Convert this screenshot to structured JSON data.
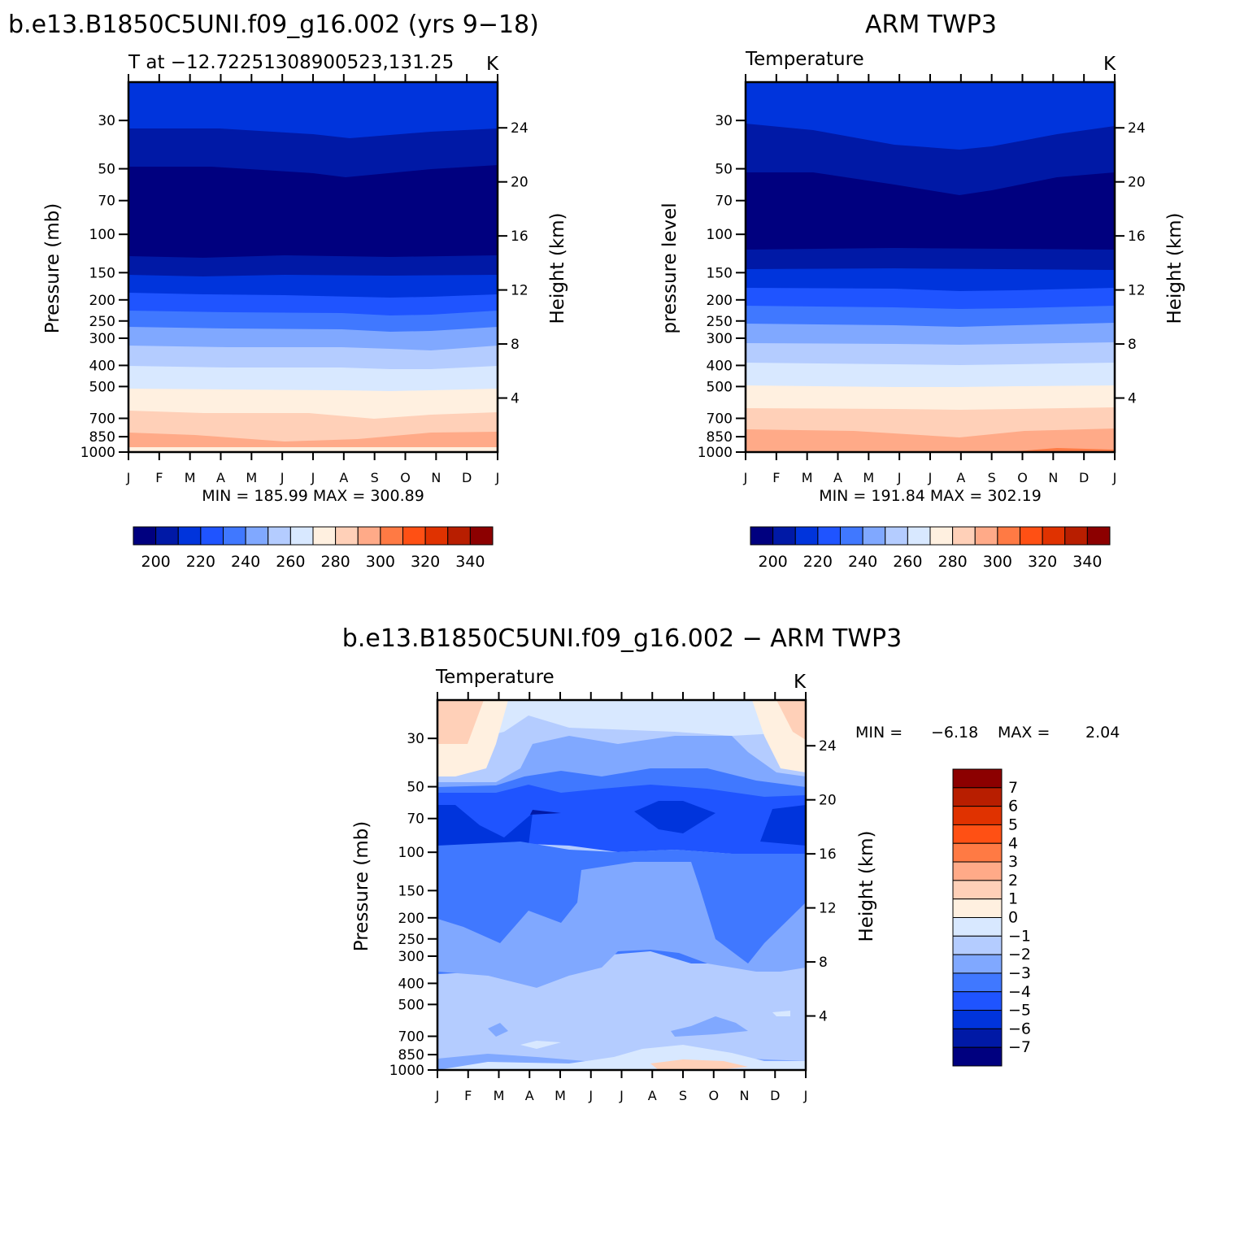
{
  "palettes": {
    "temperature": [
      "#00007f",
      "#0019a6",
      "#0034dc",
      "#1f54ff",
      "#4078ff",
      "#80a8ff",
      "#b4ccff",
      "#d8e8ff",
      "#fff0e0",
      "#ffd0b8",
      "#ffaa88",
      "#ff7a44",
      "#ff5014",
      "#e03200",
      "#b81e00",
      "#8c0000"
    ],
    "difference": [
      "#00007f",
      "#0019a6",
      "#0034dc",
      "#1f54ff",
      "#4078ff",
      "#80a8ff",
      "#b4ccff",
      "#d8e8ff",
      "#fff0e0",
      "#ffd0b8",
      "#ffaa88",
      "#ff7a44",
      "#ff5014",
      "#e03200",
      "#b81e00",
      "#8c0000"
    ]
  },
  "months": [
    "J",
    "F",
    "M",
    "A",
    "M",
    "J",
    "J",
    "A",
    "S",
    "O",
    "N",
    "D",
    "J"
  ],
  "pressure_ticks": [
    "30",
    "50",
    "70",
    "100",
    "150",
    "200",
    "250",
    "300",
    "400",
    "500",
    "700",
    "850",
    "1000"
  ],
  "height_ticks": [
    "4",
    "8",
    "12",
    "16",
    "20",
    "24"
  ],
  "panel_model": {
    "title": "b.e13.B1850C5UNI.f09_g16.002 (yrs 9−18)",
    "subtitle_left": "T at −12.72251308900523,131.25",
    "subtitle_right": "K",
    "ylabel_left": "Pressure (mb)",
    "ylabel_right": "Height (km)",
    "minmax": "MIN = 185.99 MAX = 300.89",
    "colorbar_labels": [
      "200",
      "220",
      "240",
      "260",
      "280",
      "300",
      "320",
      "340"
    ]
  },
  "panel_obs": {
    "title": "ARM TWP3",
    "subtitle_left": "Temperature",
    "subtitle_right": "K",
    "ylabel_left": "pressure level",
    "ylabel_right": "Height (km)",
    "minmax": "MIN = 191.84 MAX = 302.19",
    "colorbar_labels": [
      "200",
      "220",
      "240",
      "260",
      "280",
      "300",
      "320",
      "340"
    ]
  },
  "panel_diff": {
    "title": "b.e13.B1850C5UNI.f09_g16.002 − ARM TWP3",
    "subtitle_left": "Temperature",
    "subtitle_right": "K",
    "ylabel_left": "Pressure (mb)",
    "ylabel_right": "Height (km)",
    "minmax_label_min": "MIN =",
    "minmax_min": "−6.18",
    "minmax_label_max": "MAX =",
    "minmax_max": "2.04",
    "colorbar_labels": [
      "7",
      "6",
      "5",
      "4",
      "3",
      "2",
      "1",
      "0",
      "−1",
      "−2",
      "−3",
      "−4",
      "−5",
      "−6",
      "−7"
    ]
  },
  "chart_data": [
    {
      "type": "heatmap",
      "title": "b.e13.B1850C5UNI.f09_g16.002 (yrs 9−18)",
      "variable": "T at −12.72251308900523,131.25",
      "units": "K",
      "x": [
        "J",
        "F",
        "M",
        "A",
        "M",
        "J",
        "J",
        "A",
        "S",
        "O",
        "N",
        "D",
        "J"
      ],
      "y_pressure_mb": [
        30,
        50,
        70,
        100,
        150,
        200,
        250,
        300,
        400,
        500,
        700,
        850,
        1000
      ],
      "y_height_km": [
        4,
        8,
        12,
        16,
        20,
        24
      ],
      "contour_levels": [
        195,
        200,
        205,
        210,
        215,
        220,
        225,
        230,
        235,
        240,
        245,
        250,
        255,
        260,
        265,
        270,
        275,
        280,
        285,
        290,
        295,
        300,
        305
      ],
      "min": 185.99,
      "max": 300.89
    },
    {
      "type": "heatmap",
      "title": "ARM TWP3",
      "variable": "Temperature",
      "units": "K",
      "x": [
        "J",
        "F",
        "M",
        "A",
        "M",
        "J",
        "J",
        "A",
        "S",
        "O",
        "N",
        "D",
        "J"
      ],
      "y_pressure_mb": [
        30,
        50,
        70,
        100,
        150,
        200,
        250,
        300,
        400,
        500,
        700,
        850,
        1000
      ],
      "y_height_km": [
        4,
        8,
        12,
        16,
        20,
        24
      ],
      "min": 191.84,
      "max": 302.19
    },
    {
      "type": "heatmap",
      "title": "b.e13.B1850C5UNI.f09_g16.002 − ARM TWP3",
      "variable": "Temperature",
      "units": "K",
      "x": [
        "J",
        "F",
        "M",
        "A",
        "M",
        "J",
        "J",
        "A",
        "S",
        "O",
        "N",
        "D",
        "J"
      ],
      "y_pressure_mb": [
        30,
        50,
        70,
        100,
        150,
        200,
        250,
        300,
        400,
        500,
        700,
        850,
        1000
      ],
      "y_height_km": [
        4,
        8,
        12,
        16,
        20,
        24
      ],
      "contour_levels": [
        -7,
        -6,
        -5,
        -4,
        -3,
        -2,
        -1,
        0,
        1,
        2,
        3,
        4,
        5,
        6,
        7
      ],
      "min": -6.18,
      "max": 2.04
    }
  ]
}
